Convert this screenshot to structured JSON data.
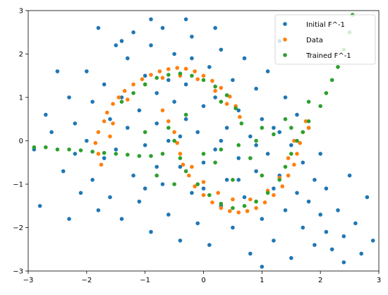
{
  "chart_data": {
    "type": "scatter",
    "title": "",
    "xlabel": "",
    "ylabel": "",
    "xlim": [
      -3,
      3
    ],
    "ylim": [
      -3,
      3
    ],
    "xticks": [
      -3,
      -2,
      -1,
      0,
      1,
      2,
      3
    ],
    "yticks": [
      -3,
      -2,
      -1,
      0,
      1,
      2,
      3
    ],
    "grid": false,
    "legend_position": "top-right",
    "series": [
      {
        "name": "Initial F^-1",
        "color": "#1f77b4",
        "points": [
          [
            -2.6,
            0.2
          ],
          [
            -2.4,
            -0.7
          ],
          [
            -2.3,
            1.0
          ],
          [
            -2.2,
            0.4
          ],
          [
            -2.2,
            -0.3
          ],
          [
            -2.1,
            -1.2
          ],
          [
            -2.0,
            1.6
          ],
          [
            -2.0,
            0.0
          ],
          [
            -1.9,
            -0.9
          ],
          [
            -1.9,
            0.9
          ],
          [
            -1.8,
            -1.6
          ],
          [
            -1.8,
            2.6
          ],
          [
            -1.7,
            1.3
          ],
          [
            -1.7,
            -0.4
          ],
          [
            -1.6,
            0.5
          ],
          [
            -1.6,
            -1.3
          ],
          [
            -1.5,
            2.2
          ],
          [
            -1.5,
            -0.2
          ],
          [
            -1.4,
            1.0
          ],
          [
            -1.4,
            -1.8
          ],
          [
            -1.3,
            0.3
          ],
          [
            -1.3,
            1.9
          ],
          [
            -1.2,
            -0.8
          ],
          [
            -1.2,
            2.5
          ],
          [
            -1.1,
            0.7
          ],
          [
            -1.1,
            -1.4
          ],
          [
            -1.0,
            1.5
          ],
          [
            -1.0,
            -0.1
          ],
          [
            -0.9,
            2.2
          ],
          [
            -0.9,
            -2.1
          ],
          [
            -0.8,
            0.4
          ],
          [
            -0.8,
            1.1
          ],
          [
            -0.7,
            -1.0
          ],
          [
            -0.7,
            2.6
          ],
          [
            -0.6,
            0.0
          ],
          [
            -0.6,
            -1.7
          ],
          [
            -0.5,
            0.9
          ],
          [
            -0.5,
            2.0
          ],
          [
            -0.4,
            -0.6
          ],
          [
            -0.4,
            -2.3
          ],
          [
            -0.3,
            0.5
          ],
          [
            -0.3,
            1.3
          ],
          [
            -0.2,
            -1.2
          ],
          [
            -0.2,
            2.4
          ],
          [
            -0.1,
            0.2
          ],
          [
            -0.1,
            -1.9
          ],
          [
            0.0,
            0.8
          ],
          [
            0.0,
            -0.5
          ],
          [
            0.1,
            1.7
          ],
          [
            0.1,
            -2.4
          ],
          [
            0.2,
            -0.2
          ],
          [
            0.2,
            1.0
          ],
          [
            0.3,
            -1.5
          ],
          [
            0.3,
            2.1
          ],
          [
            0.4,
            0.3
          ],
          [
            0.4,
            -0.9
          ],
          [
            0.5,
            1.4
          ],
          [
            0.5,
            -2.0
          ],
          [
            0.6,
            -0.4
          ],
          [
            0.6,
            0.7
          ],
          [
            0.7,
            -1.3
          ],
          [
            0.7,
            1.9
          ],
          [
            0.8,
            0.1
          ],
          [
            0.8,
            -2.6
          ],
          [
            0.9,
            -0.7
          ],
          [
            0.9,
            1.2
          ],
          [
            1.0,
            -1.8
          ],
          [
            1.0,
            0.5
          ],
          [
            1.1,
            -0.3
          ],
          [
            1.1,
            1.6
          ],
          [
            1.2,
            -1.1
          ],
          [
            1.2,
            -2.3
          ],
          [
            1.3,
            0.2
          ],
          [
            1.3,
            -0.8
          ],
          [
            1.4,
            1.0
          ],
          [
            1.4,
            -1.6
          ],
          [
            1.5,
            -2.7
          ],
          [
            1.5,
            -0.1
          ],
          [
            1.6,
            -1.2
          ],
          [
            1.6,
            0.6
          ],
          [
            1.7,
            -2.0
          ],
          [
            1.7,
            -0.5
          ],
          [
            1.8,
            -1.4
          ],
          [
            1.8,
            0.3
          ],
          [
            1.9,
            -2.4
          ],
          [
            1.9,
            -0.9
          ],
          [
            2.0,
            -1.7
          ],
          [
            2.0,
            -0.3
          ],
          [
            2.1,
            -2.1
          ],
          [
            2.1,
            -1.1
          ],
          [
            2.2,
            -2.5
          ],
          [
            2.3,
            -1.6
          ],
          [
            2.4,
            -2.2
          ],
          [
            2.5,
            -0.8
          ],
          [
            2.6,
            -1.9
          ],
          [
            2.7,
            -2.6
          ],
          [
            2.8,
            -1.3
          ],
          [
            2.9,
            -2.3
          ],
          [
            -2.8,
            -1.5
          ],
          [
            -2.7,
            0.6
          ],
          [
            -0.6,
            1.4
          ],
          [
            -0.2,
            1.9
          ],
          [
            0.3,
            0.0
          ],
          [
            0.6,
            -0.9
          ],
          [
            -1.0,
            -1.1
          ],
          [
            -0.4,
            0.1
          ],
          [
            0.9,
            -0.1
          ],
          [
            1.2,
            0.3
          ],
          [
            -0.8,
            -0.6
          ],
          [
            0.0,
            -1.1
          ],
          [
            -1.4,
            2.3
          ],
          [
            -0.3,
            2.8
          ],
          [
            0.2,
            2.6
          ],
          [
            -0.9,
            2.8
          ],
          [
            1.3,
            2.3
          ],
          [
            -2.5,
            1.6
          ],
          [
            -2.9,
            -0.2
          ],
          [
            -2.3,
            -1.8
          ],
          [
            2.4,
            -2.8
          ],
          [
            1.0,
            -2.9
          ]
        ]
      },
      {
        "name": "Data",
        "color": "#ff7f0e",
        "points": [
          [
            -1.75,
            -0.55
          ],
          [
            -1.8,
            -0.3
          ],
          [
            -1.85,
            -0.05
          ],
          [
            -1.8,
            0.2
          ],
          [
            -1.7,
            0.45
          ],
          [
            -1.65,
            0.65
          ],
          [
            -1.55,
            0.85
          ],
          [
            -1.45,
            1.0
          ],
          [
            -1.35,
            1.15
          ],
          [
            -1.2,
            1.3
          ],
          [
            -1.05,
            1.42
          ],
          [
            -0.9,
            1.52
          ],
          [
            -0.75,
            1.6
          ],
          [
            -0.6,
            1.65
          ],
          [
            -0.45,
            1.68
          ],
          [
            -0.3,
            1.66
          ],
          [
            -0.15,
            1.6
          ],
          [
            0.0,
            1.5
          ],
          [
            0.15,
            1.38
          ],
          [
            0.3,
            1.22
          ],
          [
            0.45,
            1.02
          ],
          [
            0.55,
            0.8
          ],
          [
            0.62,
            0.55
          ],
          [
            -1.6,
            0.1
          ],
          [
            -1.55,
            0.4
          ],
          [
            -1.3,
            0.95
          ],
          [
            -1.0,
            1.3
          ],
          [
            -0.7,
            1.45
          ],
          [
            -0.4,
            1.5
          ],
          [
            -0.1,
            1.42
          ],
          [
            0.2,
            1.15
          ],
          [
            0.4,
            0.85
          ],
          [
            -0.7,
            0.7
          ],
          [
            -0.6,
            0.45
          ],
          [
            -0.5,
            0.2
          ],
          [
            -0.45,
            -0.05
          ],
          [
            -0.4,
            -0.3
          ],
          [
            -0.35,
            -0.55
          ],
          [
            -0.25,
            -0.8
          ],
          [
            -0.15,
            -1.05
          ],
          [
            0.0,
            -1.25
          ],
          [
            0.15,
            -1.42
          ],
          [
            0.3,
            -1.55
          ],
          [
            0.45,
            -1.62
          ],
          [
            0.6,
            -1.65
          ],
          [
            0.75,
            -1.62
          ],
          [
            0.9,
            -1.55
          ],
          [
            1.05,
            -1.42
          ],
          [
            1.2,
            -1.25
          ],
          [
            1.35,
            -1.05
          ],
          [
            1.45,
            -0.8
          ],
          [
            1.55,
            -0.55
          ],
          [
            1.6,
            -0.3
          ],
          [
            1.65,
            -0.05
          ],
          [
            1.7,
            0.2
          ],
          [
            1.75,
            0.45
          ],
          [
            -0.2,
            -0.6
          ],
          [
            0.0,
            -0.95
          ],
          [
            0.25,
            -1.2
          ],
          [
            0.5,
            -1.35
          ],
          [
            0.8,
            -1.35
          ],
          [
            1.1,
            -1.15
          ],
          [
            1.3,
            -0.85
          ],
          [
            1.45,
            -0.4
          ],
          [
            1.55,
            0.0
          ],
          [
            1.8,
            0.3
          ]
        ]
      },
      {
        "name": "Trained F^-1",
        "color": "#2ca02c",
        "points": [
          [
            -2.9,
            -0.15
          ],
          [
            -2.7,
            -0.15
          ],
          [
            -2.5,
            -0.2
          ],
          [
            -2.3,
            -0.2
          ],
          [
            -2.1,
            -0.22
          ],
          [
            -1.9,
            -0.25
          ],
          [
            -1.7,
            -0.28
          ],
          [
            -1.5,
            -0.3
          ],
          [
            -1.3,
            -0.32
          ],
          [
            -1.1,
            -0.35
          ],
          [
            -0.9,
            -0.35
          ],
          [
            -0.7,
            -0.3
          ],
          [
            -1.4,
            0.9
          ],
          [
            -1.2,
            1.1
          ],
          [
            -1.0,
            1.3
          ],
          [
            -0.8,
            1.45
          ],
          [
            -0.6,
            1.52
          ],
          [
            -0.4,
            1.55
          ],
          [
            -0.2,
            1.5
          ],
          [
            0.0,
            1.4
          ],
          [
            0.2,
            1.25
          ],
          [
            0.4,
            1.05
          ],
          [
            0.55,
            0.75
          ],
          [
            0.65,
            0.4
          ],
          [
            -0.6,
            0.3
          ],
          [
            -0.5,
            0.0
          ],
          [
            -0.4,
            -0.4
          ],
          [
            -0.3,
            -0.7
          ],
          [
            -0.1,
            -1.0
          ],
          [
            0.1,
            -1.25
          ],
          [
            0.3,
            -1.45
          ],
          [
            0.5,
            -1.55
          ],
          [
            0.7,
            -1.5
          ],
          [
            0.9,
            -1.4
          ],
          [
            1.1,
            -1.2
          ],
          [
            1.3,
            -0.9
          ],
          [
            1.4,
            -0.6
          ],
          [
            1.5,
            -0.3
          ],
          [
            1.6,
            0.0
          ],
          [
            1.7,
            0.2
          ],
          [
            0.0,
            -0.3
          ],
          [
            0.3,
            -0.2
          ],
          [
            0.6,
            -0.1
          ],
          [
            0.9,
            0.0
          ],
          [
            1.2,
            0.15
          ],
          [
            1.5,
            0.3
          ],
          [
            1.8,
            0.45
          ],
          [
            2.0,
            0.8
          ],
          [
            2.1,
            1.1
          ],
          [
            2.2,
            1.4
          ],
          [
            2.3,
            1.7
          ],
          [
            2.4,
            2.1
          ],
          [
            2.5,
            2.5
          ],
          [
            2.55,
            2.9
          ],
          [
            -0.8,
            -0.8
          ],
          [
            -0.5,
            -1.0
          ],
          [
            0.2,
            -0.5
          ],
          [
            0.5,
            -0.9
          ],
          [
            0.8,
            -0.4
          ],
          [
            1.0,
            -0.8
          ],
          [
            -1.0,
            0.2
          ],
          [
            -0.3,
            0.6
          ],
          [
            0.3,
            0.9
          ],
          [
            1.0,
            0.3
          ],
          [
            1.4,
            0.5
          ],
          [
            1.8,
            0.9
          ]
        ]
      }
    ]
  }
}
